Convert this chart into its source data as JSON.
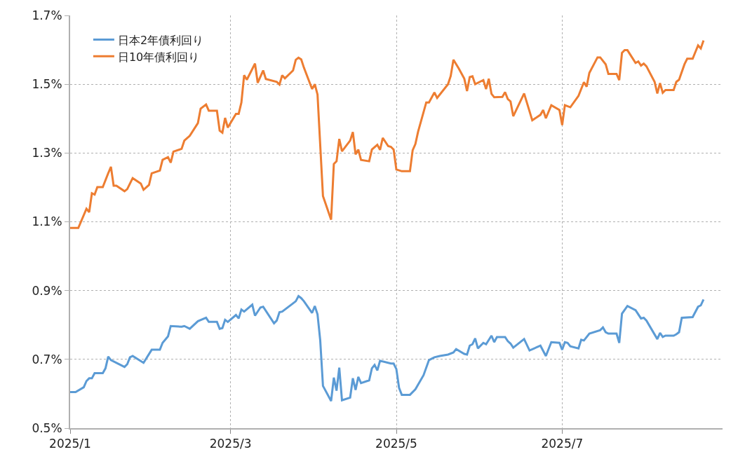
{
  "chart_data": {
    "type": "line",
    "xlim": [
      "2025-01-01",
      "2025-08-29"
    ],
    "xticks": [
      {
        "value": "2025-01-01",
        "label": "2025/1"
      },
      {
        "value": "2025-03-01",
        "label": "2025/3"
      },
      {
        "value": "2025-05-01",
        "label": "2025/5"
      },
      {
        "value": "2025-07-01",
        "label": "2025/7"
      }
    ],
    "ylim": [
      0.5,
      1.7
    ],
    "yticks": [
      {
        "value": 0.5,
        "label": "0.5%"
      },
      {
        "value": 0.7,
        "label": "0.7%"
      },
      {
        "value": 0.9,
        "label": "0.9%"
      },
      {
        "value": 1.1,
        "label": "1.1%"
      },
      {
        "value": 1.3,
        "label": "1.3%"
      },
      {
        "value": 1.5,
        "label": "1.5%"
      },
      {
        "value": 1.7,
        "label": "1.7%"
      }
    ],
    "grid": true,
    "legend": "top left",
    "marker": "none",
    "line_style": "solid",
    "series": [
      {
        "name": "日本2年債利回り",
        "color": "#5b9bd5",
        "x": [
          "2025-01-01",
          "2025-01-03",
          "2025-01-06",
          "2025-01-07",
          "2025-01-08",
          "2025-01-09",
          "2025-01-10",
          "2025-01-13",
          "2025-01-14",
          "2025-01-15",
          "2025-01-16",
          "2025-01-21",
          "2025-01-22",
          "2025-01-23",
          "2025-01-24",
          "2025-01-28",
          "2025-01-31",
          "2025-02-03",
          "2025-02-04",
          "2025-02-06",
          "2025-02-07",
          "2025-02-11",
          "2025-02-12",
          "2025-02-14",
          "2025-02-17",
          "2025-02-20",
          "2025-02-21",
          "2025-02-24",
          "2025-02-25",
          "2025-02-26",
          "2025-02-27",
          "2025-02-28",
          "2025-03-03",
          "2025-03-04",
          "2025-03-05",
          "2025-03-06",
          "2025-03-09",
          "2025-03-10",
          "2025-03-12",
          "2025-03-13",
          "2025-03-17",
          "2025-03-18",
          "2025-03-19",
          "2025-03-20",
          "2025-03-24",
          "2025-03-25",
          "2025-03-26",
          "2025-03-27",
          "2025-03-28",
          "2025-03-31",
          "2025-04-01",
          "2025-04-02",
          "2025-04-03",
          "2025-04-04",
          "2025-04-07",
          "2025-04-08",
          "2025-04-09",
          "2025-04-10",
          "2025-04-11",
          "2025-04-14",
          "2025-04-15",
          "2025-04-16",
          "2025-04-17",
          "2025-04-18",
          "2025-04-21",
          "2025-04-22",
          "2025-04-23",
          "2025-04-24",
          "2025-04-25",
          "2025-04-29",
          "2025-04-30",
          "2025-05-01",
          "2025-05-02",
          "2025-05-03",
          "2025-05-06",
          "2025-05-08",
          "2025-05-11",
          "2025-05-13",
          "2025-05-14",
          "2025-05-15",
          "2025-05-17",
          "2025-05-20",
          "2025-05-22",
          "2025-05-23",
          "2025-05-26",
          "2025-05-27",
          "2025-05-28",
          "2025-05-29",
          "2025-05-30",
          "2025-05-31",
          "2025-06-02",
          "2025-06-03",
          "2025-06-05",
          "2025-06-06",
          "2025-06-07",
          "2025-06-10",
          "2025-06-11",
          "2025-06-12",
          "2025-06-13",
          "2025-06-17",
          "2025-06-19",
          "2025-06-23",
          "2025-06-25",
          "2025-06-27",
          "2025-06-30",
          "2025-07-01",
          "2025-07-02",
          "2025-07-03",
          "2025-07-04",
          "2025-07-07",
          "2025-07-08",
          "2025-07-09",
          "2025-07-11",
          "2025-07-15",
          "2025-07-16",
          "2025-07-17",
          "2025-07-18",
          "2025-07-21",
          "2025-07-22",
          "2025-07-23",
          "2025-07-25",
          "2025-07-28",
          "2025-07-30",
          "2025-07-31",
          "2025-08-01",
          "2025-08-05",
          "2025-08-06",
          "2025-08-07",
          "2025-08-08",
          "2025-08-11",
          "2025-08-12",
          "2025-08-13",
          "2025-08-14",
          "2025-08-18",
          "2025-08-20",
          "2025-08-21",
          "2025-08-22"
        ],
        "values": [
          0.605,
          0.605,
          0.619,
          0.637,
          0.645,
          0.645,
          0.66,
          0.66,
          0.674,
          0.708,
          0.698,
          0.678,
          0.686,
          0.706,
          0.71,
          0.69,
          0.728,
          0.728,
          0.748,
          0.767,
          0.797,
          0.795,
          0.797,
          0.789,
          0.811,
          0.821,
          0.809,
          0.809,
          0.789,
          0.791,
          0.815,
          0.809,
          0.829,
          0.819,
          0.845,
          0.839,
          0.859,
          0.827,
          0.851,
          0.853,
          0.805,
          0.813,
          0.837,
          0.839,
          0.863,
          0.869,
          0.884,
          0.878,
          0.869,
          0.835,
          0.855,
          0.831,
          0.755,
          0.623,
          0.579,
          0.647,
          0.609,
          0.676,
          0.581,
          0.589,
          0.645,
          0.611,
          0.649,
          0.631,
          0.639,
          0.674,
          0.684,
          0.668,
          0.696,
          0.688,
          0.688,
          0.672,
          0.617,
          0.597,
          0.597,
          0.613,
          0.654,
          0.698,
          0.702,
          0.706,
          0.71,
          0.714,
          0.72,
          0.73,
          0.716,
          0.714,
          0.74,
          0.744,
          0.761,
          0.732,
          0.748,
          0.744,
          0.769,
          0.75,
          0.765,
          0.765,
          0.753,
          0.746,
          0.734,
          0.759,
          0.726,
          0.74,
          0.71,
          0.75,
          0.748,
          0.728,
          0.75,
          0.748,
          0.738,
          0.732,
          0.757,
          0.755,
          0.775,
          0.785,
          0.793,
          0.779,
          0.775,
          0.775,
          0.748,
          0.833,
          0.855,
          0.843,
          0.819,
          0.821,
          0.813,
          0.759,
          0.777,
          0.765,
          0.769,
          0.769,
          0.773,
          0.779,
          0.821,
          0.823,
          0.853,
          0.857,
          0.874
        ]
      },
      {
        "name": "日10年債利回り",
        "color": "#ed7d31",
        "x": [
          "2025-01-01",
          "2025-01-04",
          "2025-01-07",
          "2025-01-08",
          "2025-01-09",
          "2025-01-10",
          "2025-01-11",
          "2025-01-13",
          "2025-01-15",
          "2025-01-16",
          "2025-01-17",
          "2025-01-18",
          "2025-01-21",
          "2025-01-22",
          "2025-01-24",
          "2025-01-27",
          "2025-01-28",
          "2025-01-30",
          "2025-01-31",
          "2025-02-03",
          "2025-02-04",
          "2025-02-06",
          "2025-02-07",
          "2025-02-08",
          "2025-02-11",
          "2025-02-12",
          "2025-02-14",
          "2025-02-17",
          "2025-02-18",
          "2025-02-20",
          "2025-02-21",
          "2025-02-24",
          "2025-02-25",
          "2025-02-26",
          "2025-02-27",
          "2025-02-28",
          "2025-03-03",
          "2025-03-04",
          "2025-03-05",
          "2025-03-06",
          "2025-03-07",
          "2025-03-10",
          "2025-03-11",
          "2025-03-13",
          "2025-03-14",
          "2025-03-18",
          "2025-03-19",
          "2025-03-20",
          "2025-03-21",
          "2025-03-24",
          "2025-03-25",
          "2025-03-26",
          "2025-03-27",
          "2025-03-28",
          "2025-03-31",
          "2025-04-01",
          "2025-04-02",
          "2025-04-04",
          "2025-04-07",
          "2025-04-08",
          "2025-04-09",
          "2025-04-10",
          "2025-04-11",
          "2025-04-14",
          "2025-04-15",
          "2025-04-16",
          "2025-04-17",
          "2025-04-18",
          "2025-04-21",
          "2025-04-22",
          "2025-04-24",
          "2025-04-25",
          "2025-04-26",
          "2025-04-28",
          "2025-04-29",
          "2025-04-30",
          "2025-05-01",
          "2025-05-03",
          "2025-05-06",
          "2025-05-07",
          "2025-05-08",
          "2025-05-09",
          "2025-05-12",
          "2025-05-13",
          "2025-05-15",
          "2025-05-16",
          "2025-05-20",
          "2025-05-21",
          "2025-05-22",
          "2025-05-24",
          "2025-05-26",
          "2025-05-27",
          "2025-05-28",
          "2025-05-29",
          "2025-05-30",
          "2025-06-02",
          "2025-06-03",
          "2025-06-04",
          "2025-06-05",
          "2025-06-06",
          "2025-06-09",
          "2025-06-10",
          "2025-06-11",
          "2025-06-12",
          "2025-06-13",
          "2025-06-17",
          "2025-06-20",
          "2025-06-23",
          "2025-06-24",
          "2025-06-25",
          "2025-06-27",
          "2025-06-30",
          "2025-07-01",
          "2025-07-02",
          "2025-07-04",
          "2025-07-07",
          "2025-07-09",
          "2025-07-10",
          "2025-07-11",
          "2025-07-14",
          "2025-07-15",
          "2025-07-17",
          "2025-07-18",
          "2025-07-21",
          "2025-07-22",
          "2025-07-23",
          "2025-07-24",
          "2025-07-25",
          "2025-07-28",
          "2025-07-29",
          "2025-07-30",
          "2025-07-31",
          "2025-08-01",
          "2025-08-04",
          "2025-08-05",
          "2025-08-06",
          "2025-08-07",
          "2025-08-08",
          "2025-08-11",
          "2025-08-12",
          "2025-08-13",
          "2025-08-15",
          "2025-08-16",
          "2025-08-18",
          "2025-08-20",
          "2025-08-21",
          "2025-08-22"
        ],
        "values": [
          1.082,
          1.082,
          1.138,
          1.128,
          1.183,
          1.179,
          1.201,
          1.201,
          1.241,
          1.26,
          1.205,
          1.205,
          1.189,
          1.195,
          1.227,
          1.211,
          1.193,
          1.207,
          1.241,
          1.249,
          1.28,
          1.288,
          1.272,
          1.304,
          1.312,
          1.336,
          1.35,
          1.387,
          1.429,
          1.441,
          1.423,
          1.423,
          1.365,
          1.359,
          1.402,
          1.374,
          1.414,
          1.414,
          1.447,
          1.526,
          1.513,
          1.56,
          1.504,
          1.54,
          1.515,
          1.507,
          1.499,
          1.526,
          1.517,
          1.54,
          1.571,
          1.577,
          1.572,
          1.548,
          1.486,
          1.5,
          1.47,
          1.175,
          1.106,
          1.268,
          1.276,
          1.341,
          1.305,
          1.336,
          1.361,
          1.296,
          1.31,
          1.28,
          1.276,
          1.31,
          1.324,
          1.309,
          1.344,
          1.32,
          1.318,
          1.31,
          1.252,
          1.247,
          1.247,
          1.308,
          1.326,
          1.362,
          1.447,
          1.447,
          1.476,
          1.46,
          1.5,
          1.524,
          1.571,
          1.545,
          1.516,
          1.48,
          1.521,
          1.523,
          1.5,
          1.512,
          1.486,
          1.516,
          1.472,
          1.462,
          1.463,
          1.477,
          1.457,
          1.45,
          1.407,
          1.473,
          1.395,
          1.411,
          1.425,
          1.401,
          1.439,
          1.425,
          1.381,
          1.439,
          1.433,
          1.466,
          1.506,
          1.493,
          1.533,
          1.578,
          1.578,
          1.558,
          1.53,
          1.53,
          1.512,
          1.591,
          1.599,
          1.599,
          1.562,
          1.566,
          1.554,
          1.56,
          1.552,
          1.507,
          1.473,
          1.503,
          1.475,
          1.483,
          1.483,
          1.507,
          1.513,
          1.558,
          1.574,
          1.574,
          1.613,
          1.604,
          1.627
        ]
      }
    ]
  }
}
